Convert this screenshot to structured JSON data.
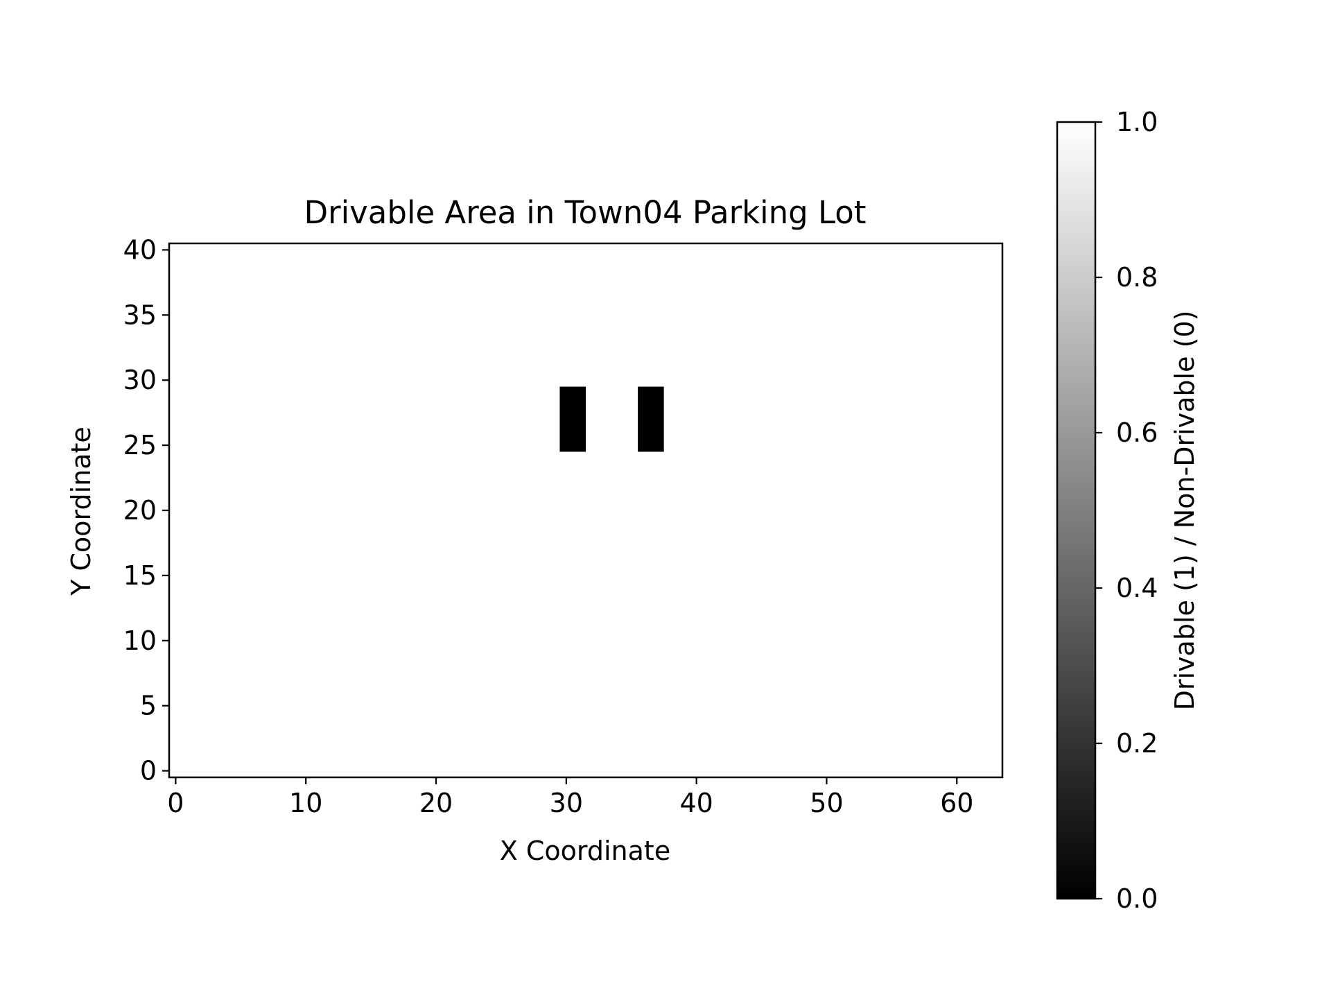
{
  "chart_data": {
    "type": "heatmap",
    "title": "Drivable Area in Town04 Parking Lot",
    "xlabel": "X Coordinate",
    "ylabel": "Y Coordinate",
    "xlim": [
      -0.5,
      63.5
    ],
    "ylim": [
      -0.5,
      40.5
    ],
    "x_ticks": [
      0,
      10,
      20,
      30,
      40,
      50,
      60
    ],
    "y_ticks": [
      0,
      5,
      10,
      15,
      20,
      25,
      30,
      35,
      40
    ],
    "grid": false,
    "background_value": 1,
    "non_drivable_cells": [
      {
        "x_range": [
          30,
          31
        ],
        "y_range": [
          25,
          29
        ],
        "value": 0
      },
      {
        "x_range": [
          36,
          37
        ],
        "y_range": [
          25,
          29
        ],
        "value": 0
      }
    ],
    "colormap": "gray",
    "colorbar": {
      "label": "Drivable (1) / Non-Drivable (0)",
      "range": [
        0.0,
        1.0
      ],
      "ticks": [
        "0.0",
        "0.2",
        "0.4",
        "0.6",
        "0.8",
        "1.0"
      ]
    },
    "colors": {
      "drivable": "#ffffff",
      "non_drivable": "#000000",
      "axes": "#000000"
    }
  }
}
